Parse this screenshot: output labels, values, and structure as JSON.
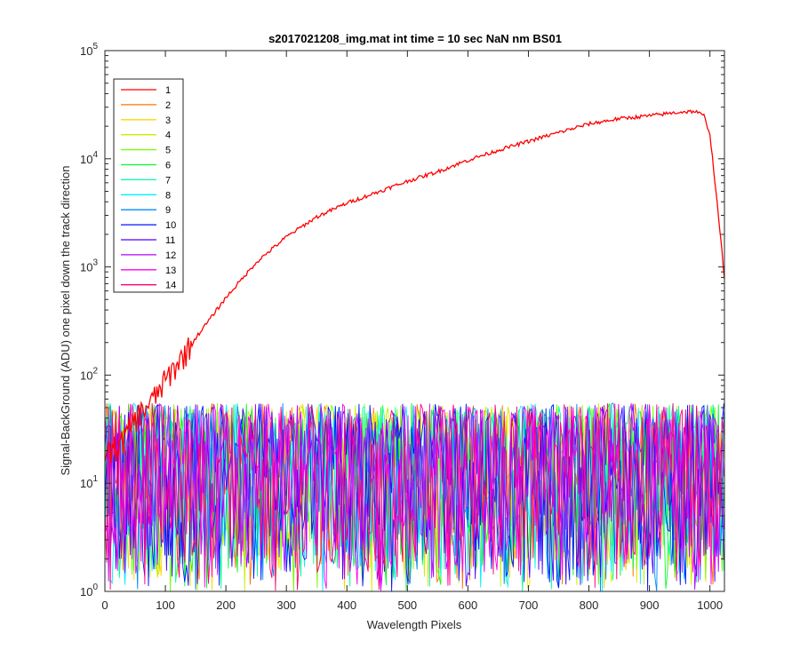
{
  "chart_data": {
    "type": "line",
    "title": "s2017021208_img.mat int time = 10 sec  NaN nm BS01",
    "xlabel": "Wavelength Pixels",
    "ylabel": "Signal-BackGround (ADU) one pixel down the track direction",
    "xlim": [
      0,
      1024
    ],
    "ylim": [
      1,
      100000
    ],
    "yscale": "log",
    "xticks": [
      "0",
      "100",
      "200",
      "300",
      "400",
      "500",
      "600",
      "700",
      "800",
      "900",
      "1000"
    ],
    "yticks": [
      {
        "base": "10",
        "exp": "0"
      },
      {
        "base": "10",
        "exp": "1"
      },
      {
        "base": "10",
        "exp": "2"
      },
      {
        "base": "10",
        "exp": "3"
      },
      {
        "base": "10",
        "exp": "4"
      },
      {
        "base": "10",
        "exp": "5"
      }
    ],
    "legend_position": "top-left",
    "series": [
      {
        "name": "1",
        "color": "#ff0000",
        "kind": "signal",
        "profile_x": [
          0,
          10,
          30,
          50,
          80,
          100,
          150,
          200,
          250,
          300,
          350,
          400,
          450,
          500,
          550,
          600,
          650,
          700,
          750,
          800,
          850,
          900,
          950,
          975,
          990,
          1000,
          1010,
          1024
        ],
        "profile_y": [
          20,
          20,
          25,
          40,
          60,
          90,
          220,
          520,
          1100,
          1900,
          2900,
          3900,
          4900,
          6200,
          7600,
          9700,
          12000,
          14500,
          17500,
          21000,
          23500,
          25000,
          27000,
          27500,
          25000,
          17000,
          5000,
          800
        ]
      },
      {
        "name": "2",
        "color": "#ff7300",
        "kind": "noise"
      },
      {
        "name": "3",
        "color": "#ffd700",
        "kind": "noise"
      },
      {
        "name": "4",
        "color": "#c8f000",
        "kind": "noise"
      },
      {
        "name": "5",
        "color": "#73ff00",
        "kind": "noise"
      },
      {
        "name": "6",
        "color": "#00ff28",
        "kind": "noise"
      },
      {
        "name": "7",
        "color": "#00ffa0",
        "kind": "noise"
      },
      {
        "name": "8",
        "color": "#00f0ff",
        "kind": "noise"
      },
      {
        "name": "9",
        "color": "#008cff",
        "kind": "noise"
      },
      {
        "name": "10",
        "color": "#0014ff",
        "kind": "noise"
      },
      {
        "name": "11",
        "color": "#5000ff",
        "kind": "noise"
      },
      {
        "name": "12",
        "color": "#b400ff",
        "kind": "noise"
      },
      {
        "name": "13",
        "color": "#ff00f0",
        "kind": "noise"
      },
      {
        "name": "14",
        "color": "#ff0078",
        "kind": "noise"
      }
    ],
    "noise_level": {
      "min": 1,
      "max": 55,
      "typical": 12
    }
  }
}
